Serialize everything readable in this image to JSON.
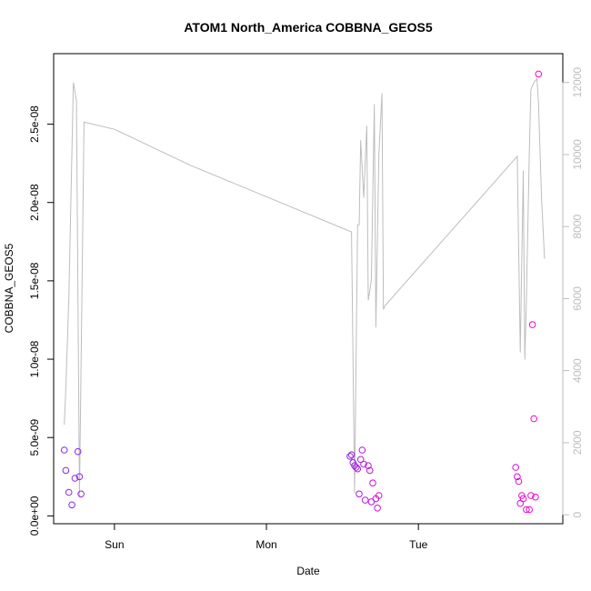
{
  "chart_data": {
    "type": "scatter",
    "title": "ATOM1 North_America COBBNA_GEOS5",
    "xlabel": "Date",
    "ylabel": "COBBNA_GEOS5",
    "x_ticks": [
      {
        "label": "Sun",
        "value": 1.0
      },
      {
        "label": "Mon",
        "value": 2.0
      },
      {
        "label": "Tue",
        "value": 3.0
      }
    ],
    "xlim": [
      0.6,
      3.95
    ],
    "ylim": [
      -5e-10,
      2.95e-08
    ],
    "y_ticks": [
      {
        "label": "0.0e+00",
        "value": 0
      },
      {
        "label": "5.0e-09",
        "value": 5e-09
      },
      {
        "label": "1.0e-08",
        "value": 1e-08
      },
      {
        "label": "1.5e-08",
        "value": 1.5e-08
      },
      {
        "label": "2.0e-08",
        "value": 2e-08
      },
      {
        "label": "2.5e-08",
        "value": 2.5e-08
      }
    ],
    "y2lim": [
      -250,
      12800
    ],
    "y2_ticks": [
      {
        "label": "0",
        "value": 0
      },
      {
        "label": "2000",
        "value": 2000
      },
      {
        "label": "4000",
        "value": 4000
      },
      {
        "label": "6000",
        "value": 6000
      },
      {
        "label": "8000",
        "value": 8000
      },
      {
        "label": "10000",
        "value": 10000
      },
      {
        "label": "12000",
        "value": 12000
      }
    ],
    "colors": {
      "line": "#bdbdbd",
      "points_start": "#7a2bf0",
      "points_end": "#ff00cc",
      "axis": "#000000"
    },
    "grid": false,
    "line_series": {
      "axis": "right",
      "x": [
        0.67,
        0.68,
        0.7,
        0.73,
        0.75,
        0.77,
        0.8,
        1.0,
        1.5,
        2.56,
        2.58,
        2.6,
        2.61,
        2.62,
        2.64,
        2.66,
        2.67,
        2.69,
        2.71,
        2.72,
        2.74,
        2.76,
        2.77,
        2.78,
        3.65,
        3.67,
        3.69,
        3.7,
        3.71,
        3.73,
        3.74,
        3.76,
        3.78,
        3.79,
        3.81,
        3.83
      ],
      "y": [
        2500,
        3500,
        6000,
        12000,
        11500,
        500,
        10900,
        10700,
        9700,
        7850,
        600,
        8050,
        8050,
        10400,
        8800,
        10800,
        5950,
        6500,
        11400,
        5200,
        10000,
        11700,
        5700,
        5800,
        9950,
        4500,
        9550,
        4300,
        5900,
        10100,
        11800,
        12000,
        12100,
        11400,
        8800,
        7100
      ]
    },
    "points": {
      "axis": "left",
      "x": [
        0.67,
        0.68,
        0.7,
        0.72,
        0.74,
        0.76,
        0.77,
        0.78,
        2.55,
        2.56,
        2.57,
        2.58,
        2.59,
        2.6,
        2.61,
        2.62,
        2.63,
        2.64,
        2.65,
        2.67,
        2.68,
        2.69,
        2.7,
        2.72,
        2.73,
        2.74,
        3.64,
        3.65,
        3.66,
        3.67,
        3.68,
        3.69,
        3.71,
        3.73,
        3.74,
        3.75,
        3.76,
        3.77,
        3.79
      ],
      "y": [
        4.2e-09,
        2.9e-09,
        1.5e-09,
        7e-10,
        2.4e-09,
        4.1e-09,
        2.5e-09,
        1.4e-09,
        3.8e-09,
        3.9e-09,
        3.4e-09,
        3.2e-09,
        3.1e-09,
        3e-09,
        1.4e-09,
        3.6e-09,
        4.2e-09,
        3.3e-09,
        1e-09,
        3.2e-09,
        2.9e-09,
        9e-10,
        2.1e-09,
        1.1e-09,
        5e-10,
        1.3e-09,
        3.1e-09,
        2.5e-09,
        2.2e-09,
        8e-10,
        1.3e-09,
        1.1e-09,
        4e-10,
        4e-10,
        1.3e-09,
        1.22e-08,
        6.2e-09,
        1.2e-09,
        2.82e-08
      ]
    }
  }
}
